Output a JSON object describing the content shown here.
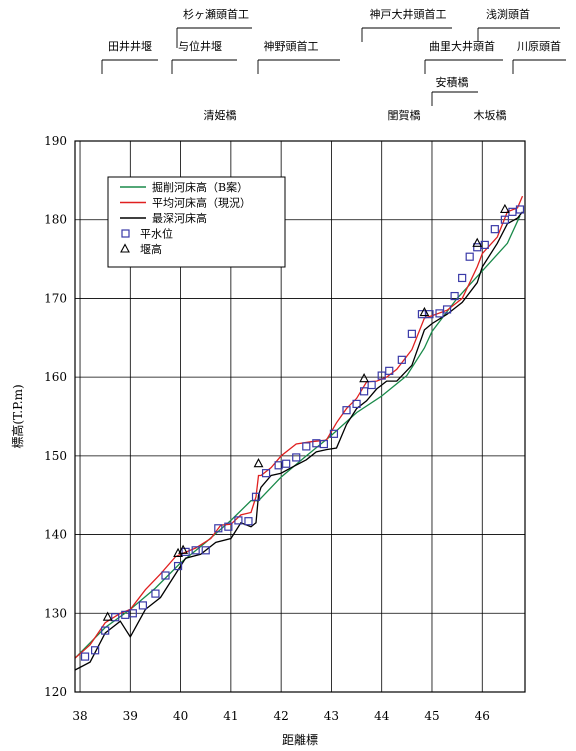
{
  "chart_data": {
    "type": "line",
    "xlabel": "距離標",
    "ylabel": "標高(T.P.m)",
    "xlim": [
      37.9,
      46.85
    ],
    "ylim": [
      120,
      190
    ],
    "x_ticks": [
      38,
      39,
      40,
      41,
      42,
      43,
      44,
      45,
      46
    ],
    "y_ticks": [
      120,
      130,
      140,
      150,
      160,
      170,
      180,
      190
    ],
    "grid": true,
    "legend_position": "top-left",
    "structures": [
      {
        "name": "田井井堰",
        "x": 38.5
      },
      {
        "name": "杉ヶ瀬頭首工",
        "x": 39.85
      },
      {
        "name": "与位井堰",
        "x": 39.85
      },
      {
        "name": "神野頭首工",
        "x": 41.5
      },
      {
        "name": "神戸大井頭首工",
        "x": 43.6
      },
      {
        "name": "浅渕頭首",
        "x": 45.95
      },
      {
        "name": "曲里大井頭首",
        "x": 44.85
      },
      {
        "name": "川原頭首",
        "x": 46.55
      }
    ],
    "bridges": [
      {
        "name": "清姫橋",
        "x": 40.65
      },
      {
        "name": "安積橋",
        "x": 44.95
      },
      {
        "name": "閨賀橋",
        "x": 44.45
      },
      {
        "name": "木坂橋",
        "x": 45.7
      }
    ],
    "series": [
      {
        "name": "掘削河床高（B案）",
        "color": "#1a8a4a",
        "x": [
          37.9,
          38.5,
          39.0,
          39.5,
          40.0,
          40.5,
          41.0,
          41.4,
          41.55,
          42.0,
          42.5,
          43.0,
          43.5,
          44.0,
          44.5,
          44.85,
          45.0,
          45.5,
          46.0,
          46.5,
          46.75
        ],
        "y": [
          124.3,
          128.2,
          130.5,
          133.2,
          136.4,
          139.0,
          141.8,
          144.3,
          144.3,
          147.3,
          150.0,
          152.6,
          155.5,
          157.6,
          160.2,
          163.7,
          165.8,
          170.0,
          173.5,
          177.0,
          180.5
        ]
      },
      {
        "name": "平均河床高（現況）",
        "color": "#e02020",
        "x": [
          37.9,
          38.2,
          38.5,
          38.8,
          39.0,
          39.3,
          39.6,
          39.9,
          40.0,
          40.3,
          40.6,
          40.8,
          41.0,
          41.2,
          41.4,
          41.5,
          41.55,
          41.6,
          41.8,
          42.0,
          42.3,
          42.6,
          42.9,
          43.1,
          43.3,
          43.5,
          43.7,
          43.9,
          44.1,
          44.3,
          44.6,
          44.85,
          45.0,
          45.3,
          45.6,
          45.9,
          46.0,
          46.3,
          46.5,
          46.7,
          46.8
        ],
        "y": [
          124.3,
          126.0,
          128.8,
          130.0,
          130.5,
          133.0,
          135.0,
          137.2,
          137.5,
          138.3,
          139.5,
          141.2,
          141.3,
          142.5,
          142.8,
          144.8,
          147.5,
          147.5,
          148.5,
          150.0,
          151.5,
          151.8,
          152.0,
          154.2,
          156.0,
          157.3,
          159.4,
          159.5,
          160.0,
          161.0,
          163.5,
          167.5,
          167.8,
          168.5,
          170.0,
          174.0,
          175.7,
          177.8,
          181.0,
          181.5,
          183.0
        ]
      },
      {
        "name": "最深河床高",
        "color": "#000000",
        "x": [
          37.9,
          38.2,
          38.5,
          38.8,
          39.0,
          39.3,
          39.6,
          39.9,
          40.1,
          40.4,
          40.7,
          41.0,
          41.2,
          41.4,
          41.5,
          41.55,
          41.6,
          41.8,
          42.0,
          42.2,
          42.5,
          42.7,
          42.9,
          43.1,
          43.3,
          43.5,
          43.7,
          43.9,
          44.1,
          44.3,
          44.6,
          44.85,
          45.0,
          45.3,
          45.6,
          45.9,
          46.0,
          46.3,
          46.5,
          46.7,
          46.8
        ],
        "y": [
          122.8,
          123.8,
          127.5,
          129.0,
          127.0,
          130.5,
          132.0,
          135.0,
          137.0,
          137.5,
          139.0,
          139.5,
          141.5,
          141.0,
          141.5,
          145.0,
          146.0,
          147.5,
          147.8,
          148.5,
          149.5,
          150.5,
          150.8,
          151.0,
          154.0,
          156.0,
          157.0,
          158.5,
          159.5,
          159.5,
          161.5,
          166.0,
          166.8,
          168.0,
          169.5,
          172.0,
          174.0,
          177.0,
          179.5,
          180.2,
          181.0
        ]
      }
    ],
    "water_level": {
      "name": "平水位",
      "color": "#3a3aa8",
      "x": [
        38.1,
        38.3,
        38.5,
        38.7,
        38.9,
        39.05,
        39.25,
        39.5,
        39.7,
        39.95,
        40.1,
        40.3,
        40.5,
        40.75,
        40.95,
        41.15,
        41.35,
        41.5,
        41.7,
        41.95,
        42.1,
        42.3,
        42.5,
        42.7,
        42.85,
        43.05,
        43.3,
        43.5,
        43.65,
        43.8,
        44.0,
        44.15,
        44.4,
        44.6,
        44.8,
        44.95,
        45.15,
        45.3,
        45.45,
        45.6,
        45.75,
        45.9,
        46.05,
        46.25,
        46.45,
        46.6,
        46.75
      ],
      "y": [
        124.5,
        125.3,
        127.8,
        129.5,
        129.8,
        130.0,
        131.0,
        132.5,
        134.8,
        136.0,
        137.8,
        138.0,
        138.0,
        140.8,
        141.0,
        141.8,
        141.7,
        144.8,
        147.8,
        148.8,
        149.0,
        149.8,
        151.2,
        151.6,
        151.5,
        152.8,
        155.8,
        156.6,
        158.2,
        159.0,
        160.2,
        160.8,
        162.2,
        165.5,
        168.0,
        168.0,
        168.1,
        168.6,
        170.3,
        172.6,
        175.3,
        176.5,
        176.8,
        178.8,
        180.0,
        181.0,
        181.3
      ]
    },
    "weir_heights": {
      "name": "堰高",
      "color": "#000000",
      "x": [
        38.55,
        39.95,
        40.05,
        41.55,
        43.65,
        44.85,
        45.9,
        46.45
      ],
      "y": [
        129.5,
        137.6,
        138.0,
        149.0,
        159.8,
        168.2,
        177.0,
        181.3
      ]
    },
    "legend": [
      {
        "label": "掘削河床高（B案）",
        "kind": "line",
        "color": "#1a8a4a"
      },
      {
        "label": "平均河床高（現況）",
        "kind": "line",
        "color": "#e02020"
      },
      {
        "label": "最深河床高",
        "kind": "line",
        "color": "#000000"
      },
      {
        "label": "平水位",
        "kind": "square",
        "color": "#3a3aa8"
      },
      {
        "label": "堰高",
        "kind": "triangle",
        "color": "#000000"
      }
    ]
  }
}
